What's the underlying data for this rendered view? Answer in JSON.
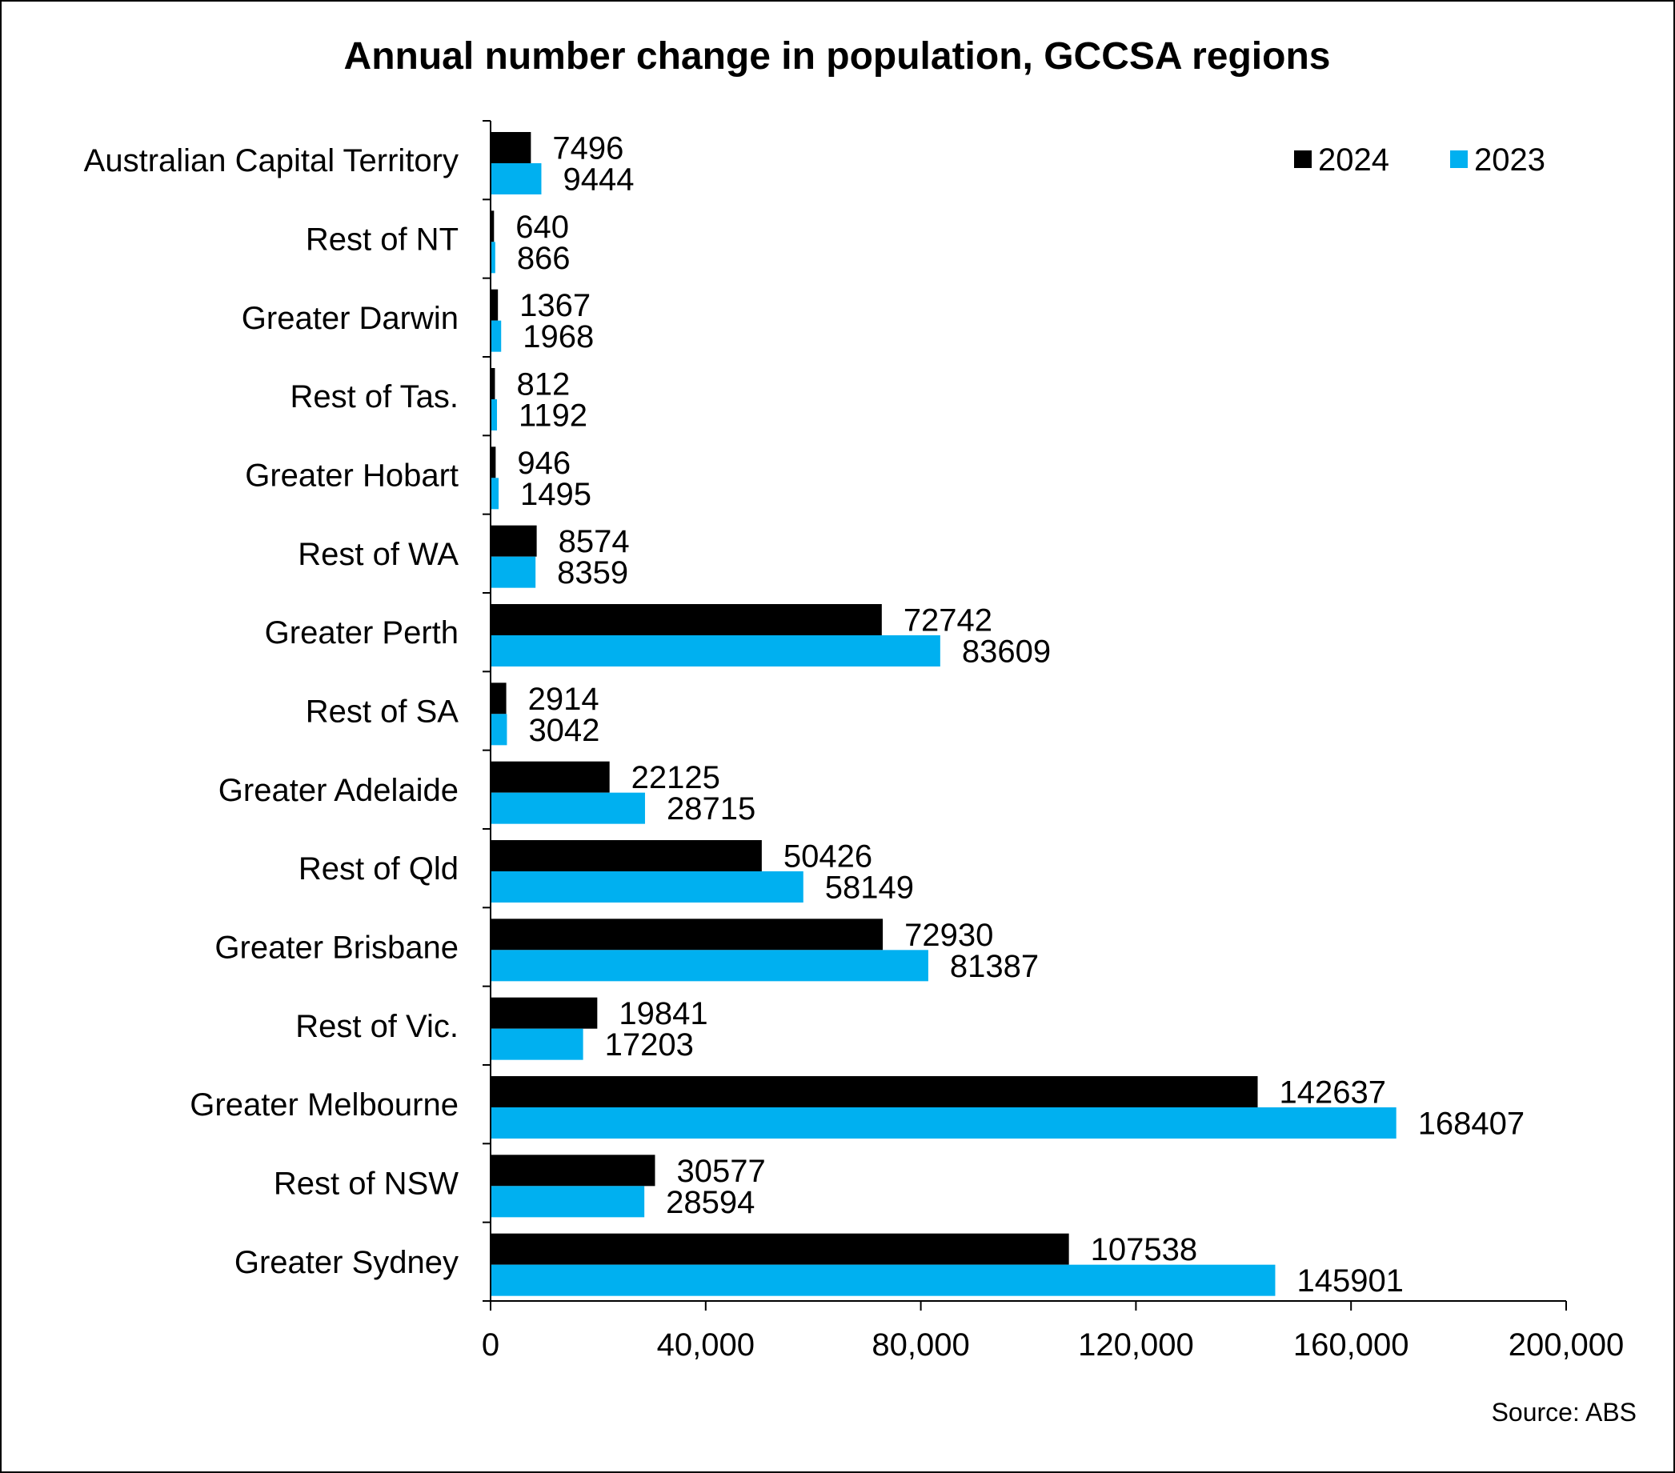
{
  "chart_data": {
    "type": "bar",
    "orientation": "horizontal",
    "title": "Annual number change in population, GCCSA regions",
    "categories": [
      "Australian Capital Territory",
      "Rest of NT",
      "Greater Darwin",
      "Rest of Tas.",
      "Greater Hobart",
      "Rest of WA",
      "Greater Perth",
      "Rest of SA",
      "Greater Adelaide",
      "Rest of Qld",
      "Greater Brisbane",
      "Rest of Vic.",
      "Greater Melbourne",
      "Rest of NSW",
      "Greater Sydney"
    ],
    "series": [
      {
        "name": "2024",
        "color": "#000000",
        "values": [
          7496,
          640,
          1367,
          812,
          946,
          8574,
          72742,
          2914,
          22125,
          50426,
          72930,
          19841,
          142637,
          30577,
          107538
        ]
      },
      {
        "name": "2023",
        "color": "#00B0F0",
        "values": [
          9444,
          866,
          1968,
          1192,
          1495,
          8359,
          83609,
          3042,
          28715,
          58149,
          81387,
          17203,
          168407,
          28594,
          145901
        ]
      }
    ],
    "xlim": [
      0,
      200000
    ],
    "x_ticks": [
      "0",
      "40,000",
      "80,000",
      "120,000",
      "160,000",
      "200,000"
    ],
    "xlabel": "",
    "ylabel": "",
    "grid": false,
    "legend_position": "top-right",
    "data_labels": true
  },
  "footer": {
    "source": "Source: ABS"
  }
}
